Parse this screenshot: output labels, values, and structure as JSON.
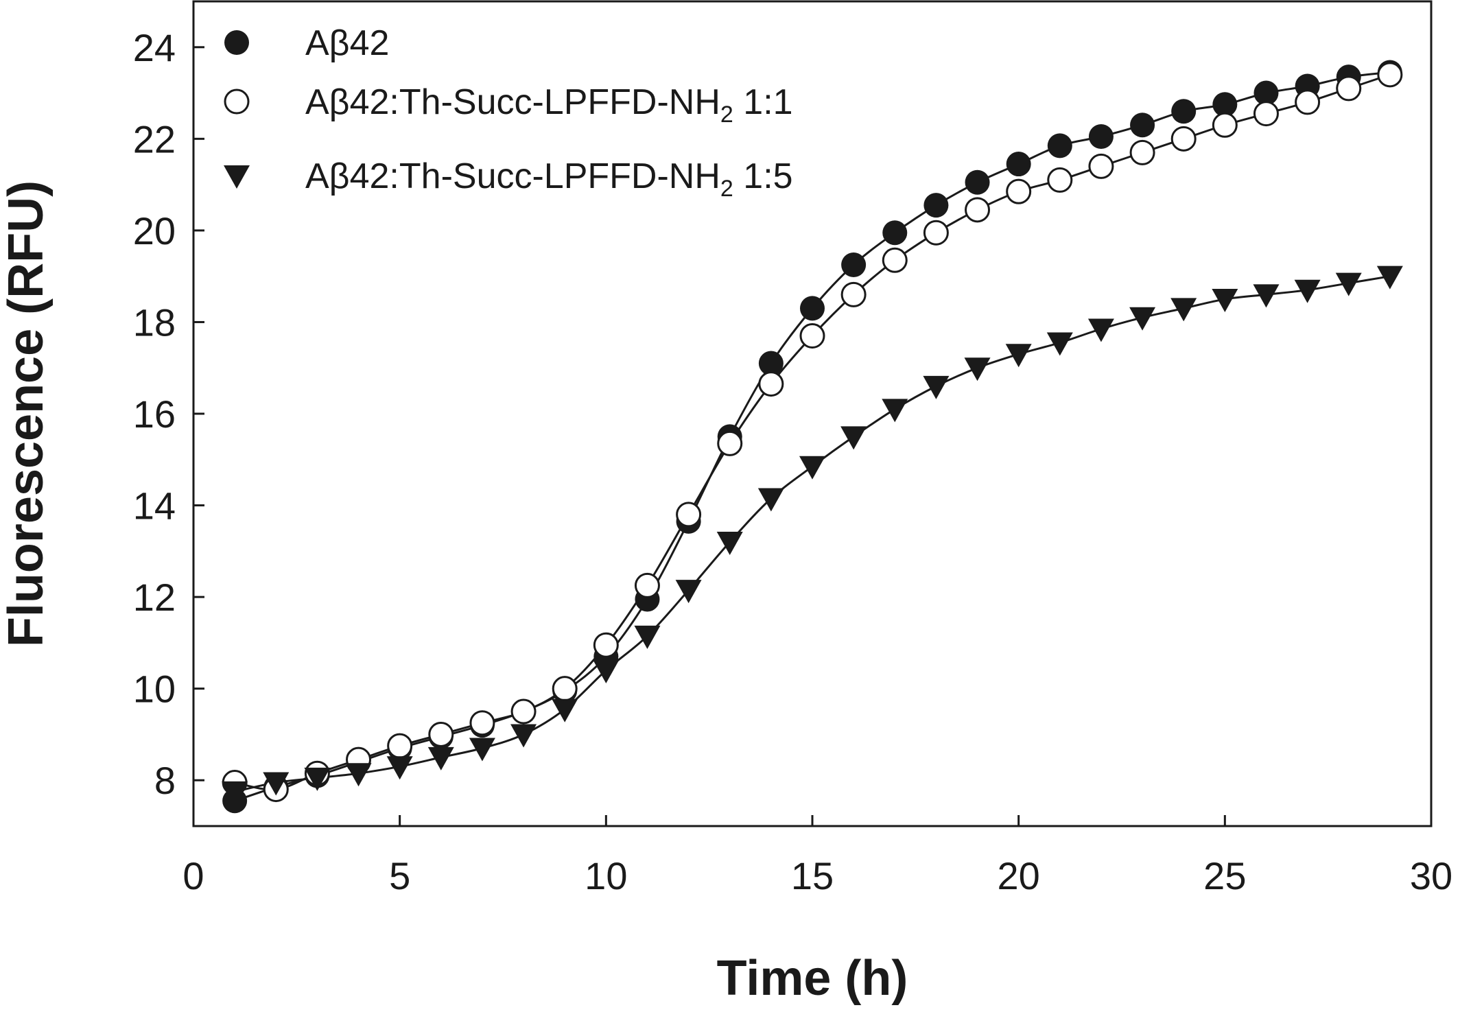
{
  "chart_data": {
    "type": "scatter",
    "title": "",
    "xlabel": "Time (h)",
    "ylabel": "Fluorescence (RFU)",
    "xlim": [
      0,
      30
    ],
    "ylim": [
      7,
      25
    ],
    "xticks": [
      "0",
      "5",
      "10",
      "15",
      "20",
      "25",
      "30"
    ],
    "yticks": [
      "8",
      "10",
      "12",
      "14",
      "16",
      "18",
      "20",
      "22",
      "24"
    ],
    "grid": false,
    "legend_position": "top-left",
    "fit_curves": true,
    "series": [
      {
        "name": "Aβ42",
        "marker": "filled-circle",
        "x": [
          1,
          2,
          3,
          4,
          5,
          6,
          7,
          8,
          9,
          10,
          11,
          12,
          13,
          14,
          15,
          16,
          17,
          18,
          19,
          20,
          21,
          22,
          23,
          24,
          25,
          26,
          27,
          28,
          29
        ],
        "y": [
          7.55,
          7.85,
          8.1,
          8.4,
          8.7,
          8.95,
          9.2,
          9.5,
          9.95,
          10.7,
          11.95,
          13.65,
          15.5,
          17.1,
          18.3,
          19.25,
          19.95,
          20.55,
          21.05,
          21.45,
          21.85,
          22.05,
          22.3,
          22.6,
          22.75,
          23.0,
          23.15,
          23.35,
          23.45
        ]
      },
      {
        "name": "Aβ42:Th-Succ-LPFFD-NH2 1:1",
        "name_parts": [
          "Aβ42:Th-Succ-LPFFD-NH",
          "2",
          " 1:1"
        ],
        "marker": "open-circle",
        "x": [
          1,
          2,
          3,
          4,
          5,
          6,
          7,
          8,
          9,
          10,
          11,
          12,
          13,
          14,
          15,
          16,
          17,
          18,
          19,
          20,
          21,
          22,
          23,
          24,
          25,
          26,
          27,
          28,
          29
        ],
        "y": [
          7.95,
          7.8,
          8.15,
          8.45,
          8.75,
          9.0,
          9.25,
          9.5,
          10.0,
          10.95,
          12.25,
          13.8,
          15.35,
          16.65,
          17.7,
          18.6,
          19.35,
          19.95,
          20.45,
          20.85,
          21.1,
          21.4,
          21.7,
          22.0,
          22.3,
          22.55,
          22.8,
          23.1,
          23.4
        ]
      },
      {
        "name": "Aβ42:Th-Succ-LPFFD-NH2 1:5",
        "name_parts": [
          "Aβ42:Th-Succ-LPFFD-NH",
          "2",
          " 1:5"
        ],
        "marker": "filled-triangle-down",
        "x": [
          1,
          2,
          3,
          4,
          5,
          6,
          7,
          8,
          9,
          10,
          11,
          12,
          13,
          14,
          15,
          16,
          17,
          18,
          19,
          20,
          21,
          22,
          23,
          24,
          25,
          26,
          27,
          28,
          29
        ],
        "y": [
          7.75,
          7.95,
          8.05,
          8.15,
          8.3,
          8.5,
          8.7,
          9.0,
          9.55,
          10.4,
          11.15,
          12.15,
          13.2,
          14.15,
          14.85,
          15.5,
          16.1,
          16.6,
          17.0,
          17.3,
          17.55,
          17.85,
          18.1,
          18.3,
          18.5,
          18.6,
          18.7,
          18.85,
          19.0
        ]
      }
    ]
  }
}
